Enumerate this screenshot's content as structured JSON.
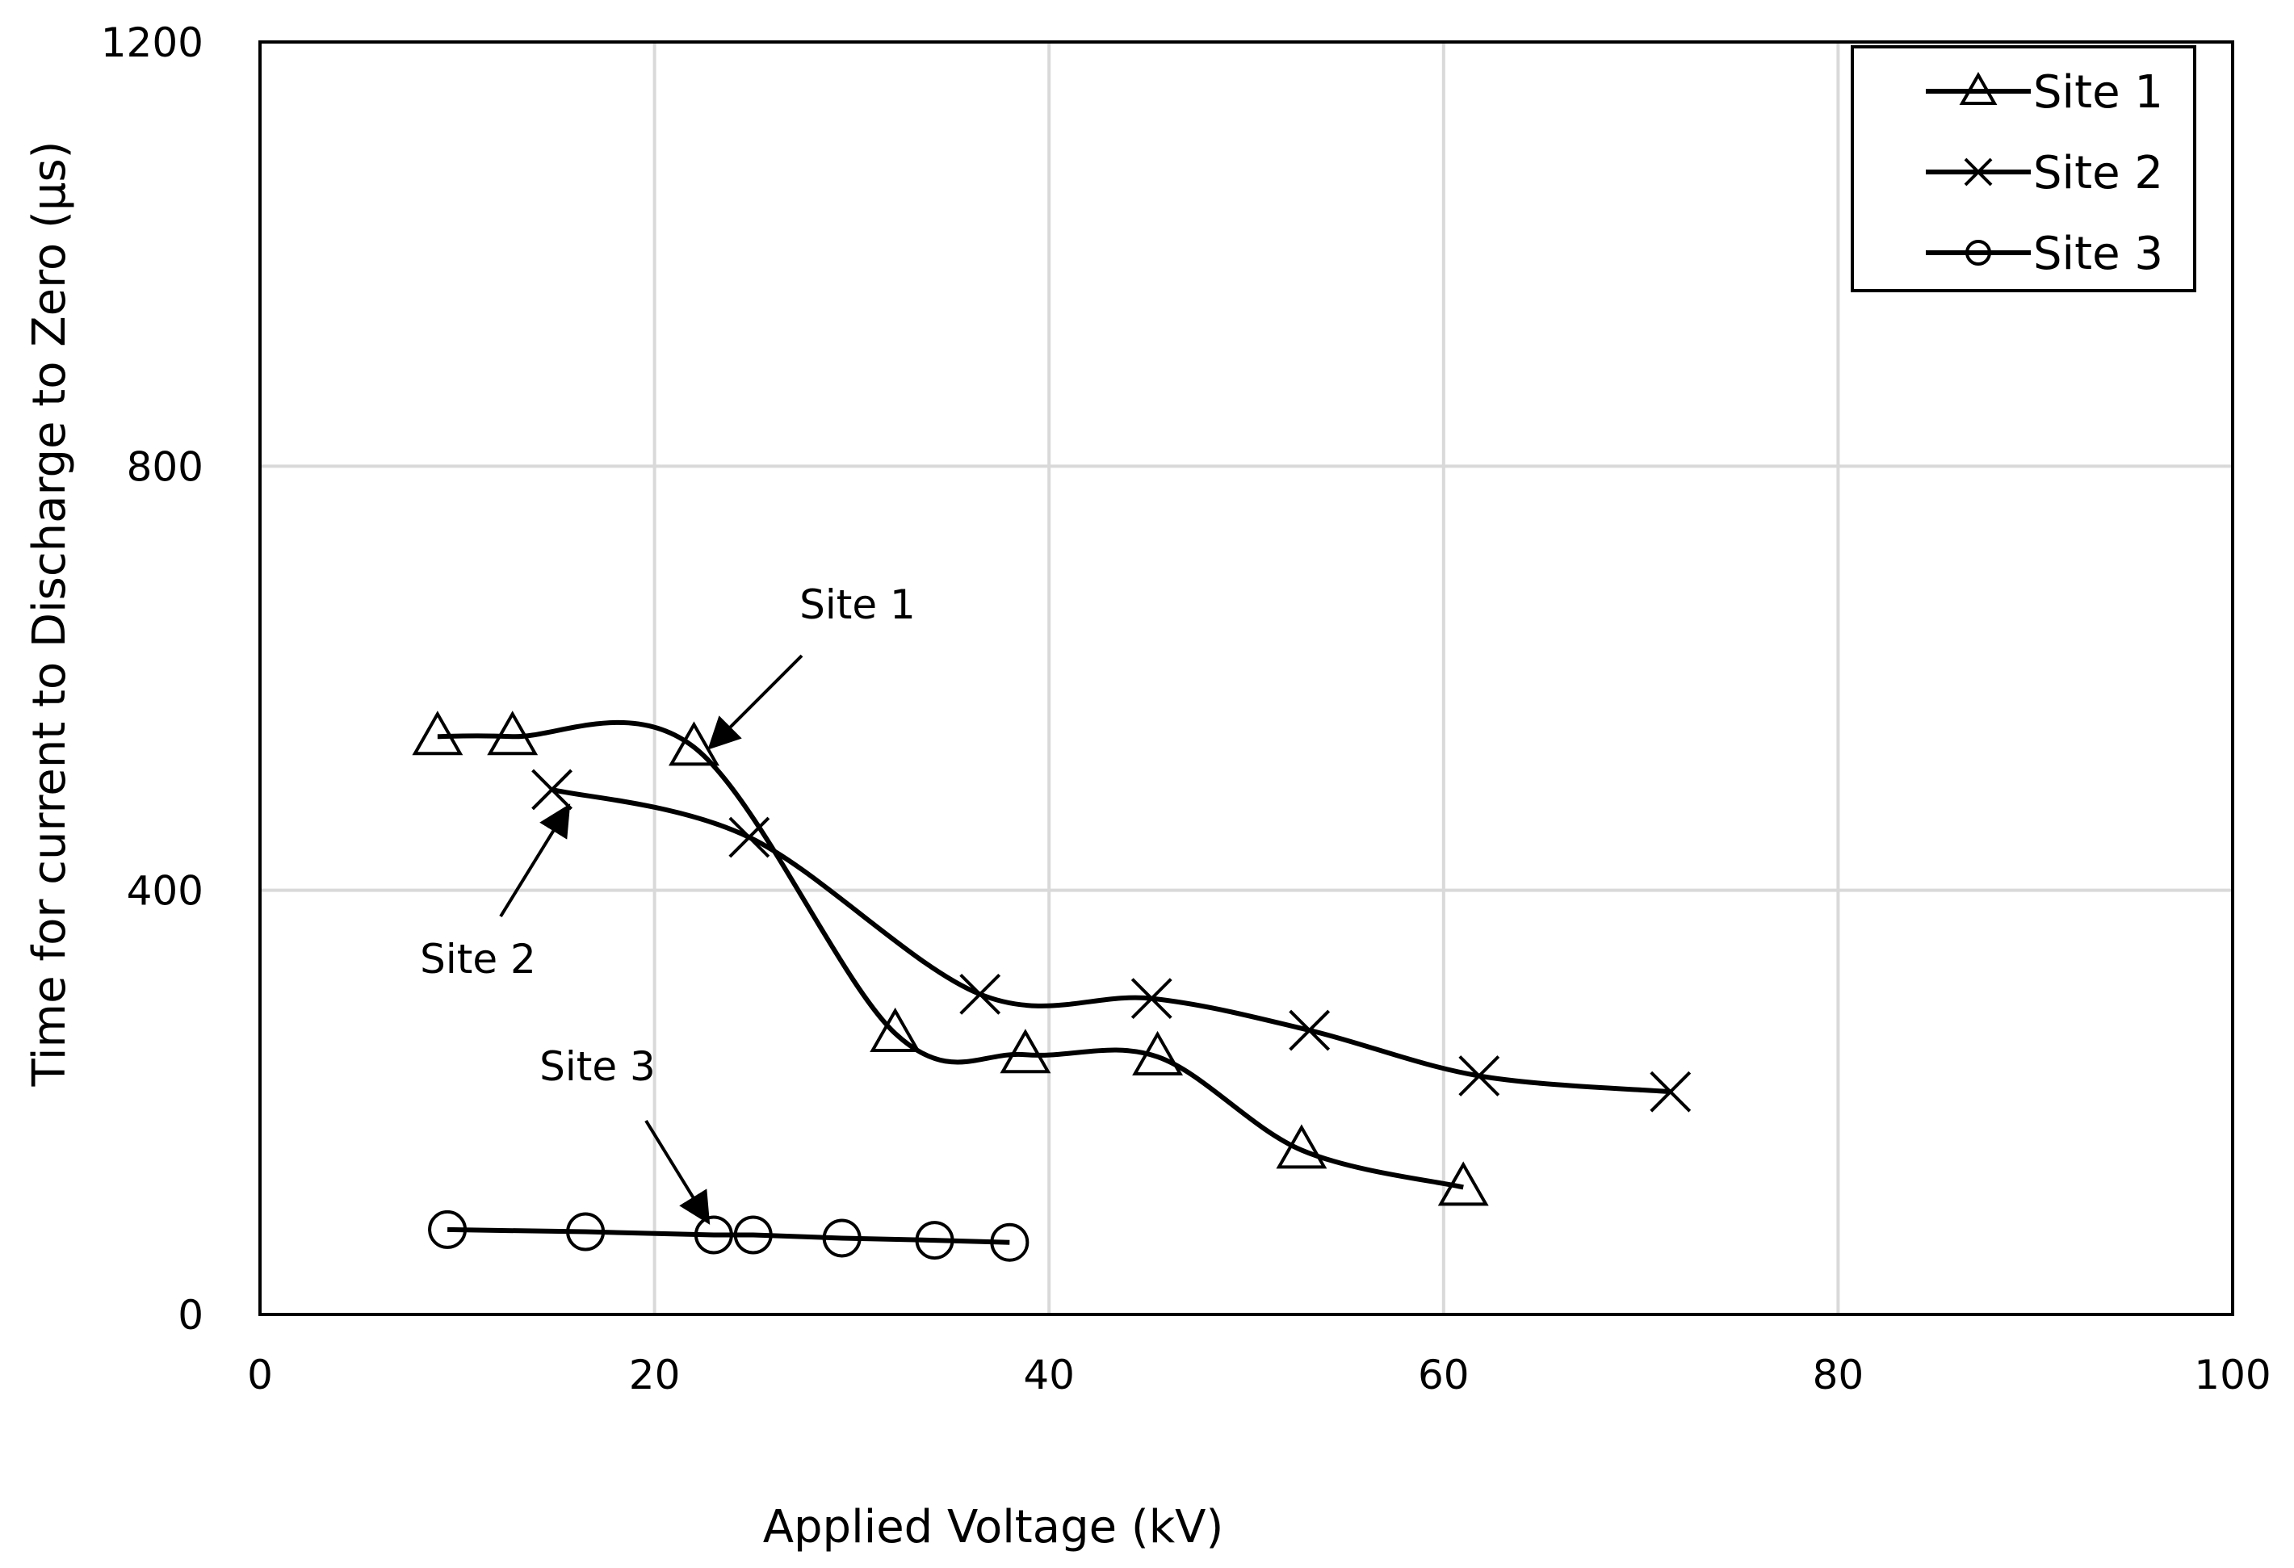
{
  "chart_data": {
    "type": "line",
    "title": "",
    "xlabel": "Applied Voltage (kV)",
    "ylabel": "Time for current to Discharge to Zero (μs)",
    "xlim": [
      0,
      100
    ],
    "ylim": [
      0,
      1200
    ],
    "x_ticks": [
      "0",
      "20",
      "40",
      "60",
      "80",
      "100"
    ],
    "y_ticks": [
      "0",
      "400",
      "800",
      "1200"
    ],
    "grid": true,
    "legend_position": "top-right",
    "series": [
      {
        "name": "Site 1",
        "marker": "triangle",
        "x": [
          9,
          12.8,
          22,
          32.2,
          38.8,
          45.5,
          52.8,
          61
        ],
        "y": [
          545,
          545,
          535,
          265,
          245,
          243,
          155,
          120
        ]
      },
      {
        "name": "Site 2",
        "marker": "x",
        "x": [
          14.8,
          24.8,
          36.5,
          45.2,
          53.2,
          61.8,
          71.5
        ],
        "y": [
          495,
          450,
          302,
          298,
          268,
          225,
          210
        ]
      },
      {
        "name": "Site 3",
        "marker": "circle",
        "x": [
          9.5,
          16.5,
          23,
          25,
          29.5,
          34.2,
          38
        ],
        "y": [
          80,
          78,
          75,
          75,
          72,
          70,
          68
        ]
      }
    ],
    "annotations": [
      {
        "text": "Site 1",
        "target_series": "Site 1"
      },
      {
        "text": "Site 2",
        "target_series": "Site 2"
      },
      {
        "text": "Site 3",
        "target_series": "Site 3"
      }
    ]
  }
}
